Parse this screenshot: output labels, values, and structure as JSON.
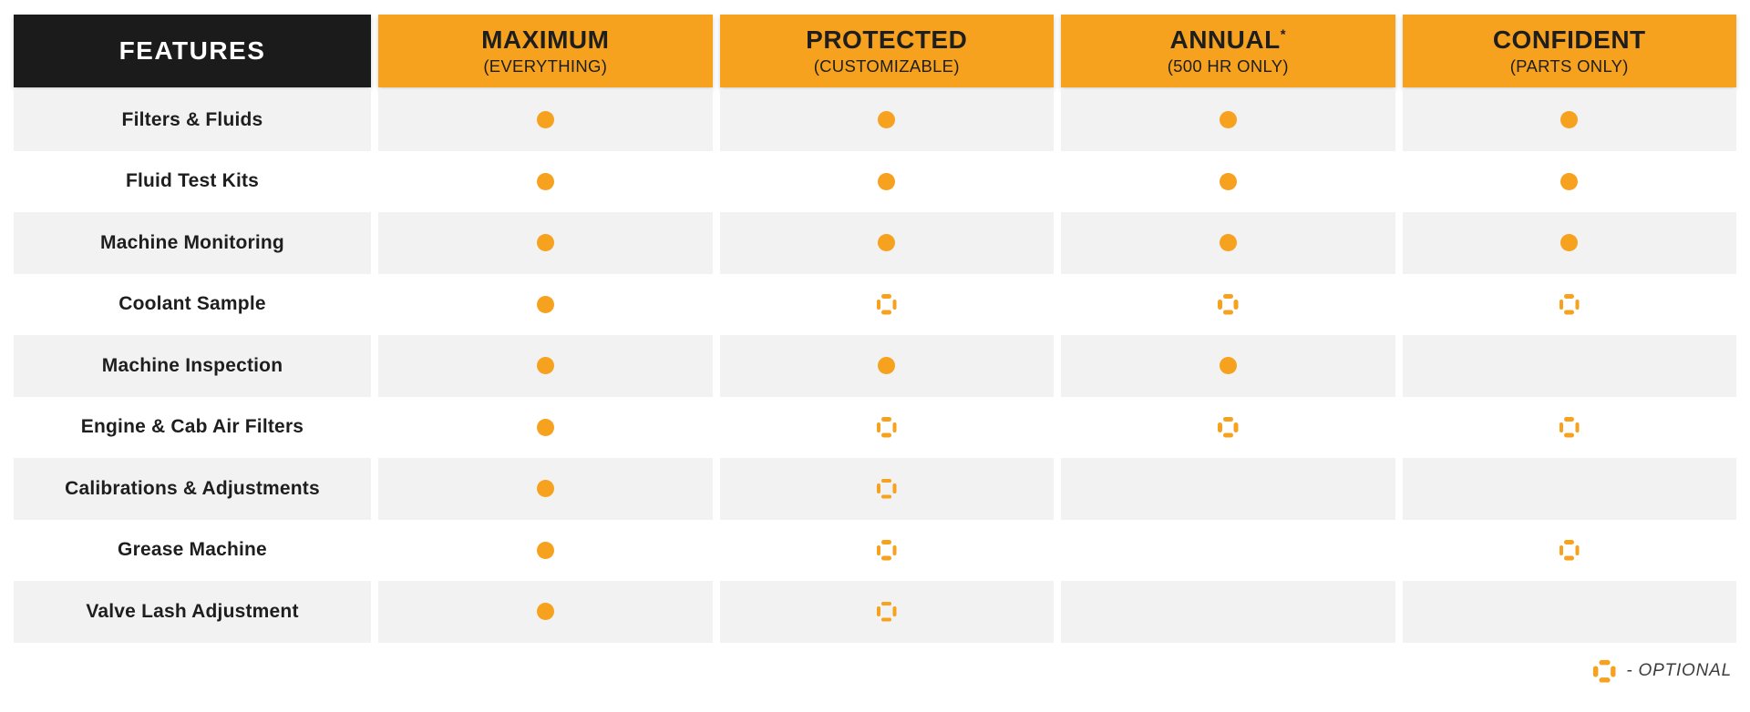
{
  "theme": {
    "orange": "#F6A21E",
    "header_black": "#1B1B1B",
    "row_alt": "#F2F2F2",
    "row_base": "#FFFFFF",
    "text_dark": "#1E1E1E",
    "legend_text": "#3D3D3D"
  },
  "chart_data": {
    "type": "table",
    "header": [
      {
        "label": "FEATURES"
      },
      {
        "title": "MAXIMUM",
        "subtitle": "(EVERYTHING)"
      },
      {
        "title": "PROTECTED",
        "subtitle": "(CUSTOMIZABLE)"
      },
      {
        "title": "ANNUAL",
        "superscript": "*",
        "subtitle": "(500 HR ONLY)"
      },
      {
        "title": "CONFIDENT",
        "subtitle": "(PARTS ONLY)"
      }
    ],
    "rows": [
      {
        "feature": "Filters & Fluids",
        "cells": [
          "included",
          "included",
          "included",
          "included"
        ]
      },
      {
        "feature": "Fluid Test Kits",
        "cells": [
          "included",
          "included",
          "included",
          "included"
        ]
      },
      {
        "feature": "Machine Monitoring",
        "cells": [
          "included",
          "included",
          "included",
          "included"
        ]
      },
      {
        "feature": "Coolant Sample",
        "cells": [
          "included",
          "optional",
          "optional",
          "optional"
        ]
      },
      {
        "feature": "Machine Inspection",
        "cells": [
          "included",
          "included",
          "included",
          "none"
        ]
      },
      {
        "feature": "Engine & Cab Air Filters",
        "cells": [
          "included",
          "optional",
          "optional",
          "optional"
        ]
      },
      {
        "feature": "Calibrations & Adjustments",
        "cells": [
          "included",
          "optional",
          "none",
          "none"
        ]
      },
      {
        "feature": "Grease Machine",
        "cells": [
          "included",
          "optional",
          "none",
          "optional"
        ]
      },
      {
        "feature": "Valve Lash Adjustment",
        "cells": [
          "included",
          "optional",
          "none",
          "none"
        ]
      }
    ],
    "legend": {
      "marker": "optional",
      "label": "- OPTIONAL"
    },
    "marker_meanings": {
      "included": "solid orange dot",
      "optional": "dashed orange circle",
      "none": "empty cell"
    }
  }
}
